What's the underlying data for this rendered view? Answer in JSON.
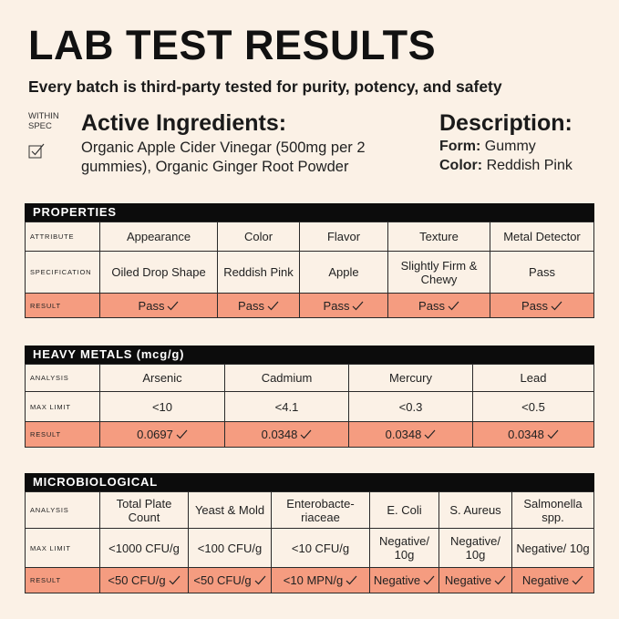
{
  "header": {
    "title": "LAB TEST RESULTS",
    "subtitle": "Every batch is third-party tested for purity, potency, and safety"
  },
  "spec": {
    "label": "WITHIN SPEC",
    "icon": "checkbox-icon"
  },
  "ingredients": {
    "title": "Active Ingredients:",
    "text": "Organic Apple Cider Vinegar (500mg per 2 gummies), Organic Ginger Root Powder"
  },
  "description": {
    "title": "Description:",
    "form_label": "Form:",
    "form_value": "Gummy",
    "color_label": "Color:",
    "color_value": "Reddish Pink"
  },
  "properties": {
    "title": "PROPERTIES",
    "row_labels": [
      "ATTRIBUTE",
      "SPECIFICATION",
      "RESULT"
    ],
    "columns": [
      "Appearance",
      "Color",
      "Flavor",
      "Texture",
      "Metal Detector"
    ],
    "specification": [
      "Oiled Drop Shape",
      "Reddish Pink",
      "Apple",
      "Slightly Firm & Chewy",
      "Pass"
    ],
    "result": [
      "Pass",
      "Pass",
      "Pass",
      "Pass",
      "Pass"
    ]
  },
  "heavy_metals": {
    "title": "HEAVY METALS (mcg/g)",
    "row_labels": [
      "ANALYSIS",
      "MAX LIMIT",
      "RESULT"
    ],
    "columns": [
      "Arsenic",
      "Cadmium",
      "Mercury",
      "Lead"
    ],
    "max_limit": [
      "<10",
      "<4.1",
      "<0.3",
      "<0.5"
    ],
    "result": [
      "0.0697",
      "0.0348",
      "0.0348",
      "0.0348"
    ]
  },
  "microbiological": {
    "title": "MICROBIOLOGICAL",
    "row_labels": [
      "ANALYSIS",
      "MAX LIMIT",
      "RESULT"
    ],
    "columns": [
      "Total Plate Count",
      "Yeast & Mold",
      "Enterobacte-riaceae",
      "E. Coli",
      "S. Aureus",
      "Salmonella spp."
    ],
    "max_limit": [
      "<1000 CFU/g",
      "<100 CFU/g",
      "<10 CFU/g",
      "Negative/ 10g",
      "Negative/ 10g",
      "Negative/ 10g"
    ],
    "result": [
      "<50 CFU/g",
      "<50 CFU/g",
      "<10 MPN/g",
      "Negative",
      "Negative",
      "Negative"
    ]
  },
  "colors": {
    "result_row": "#f59c80",
    "header_bar": "#0c0c0c",
    "background": "#fbf1e6"
  }
}
